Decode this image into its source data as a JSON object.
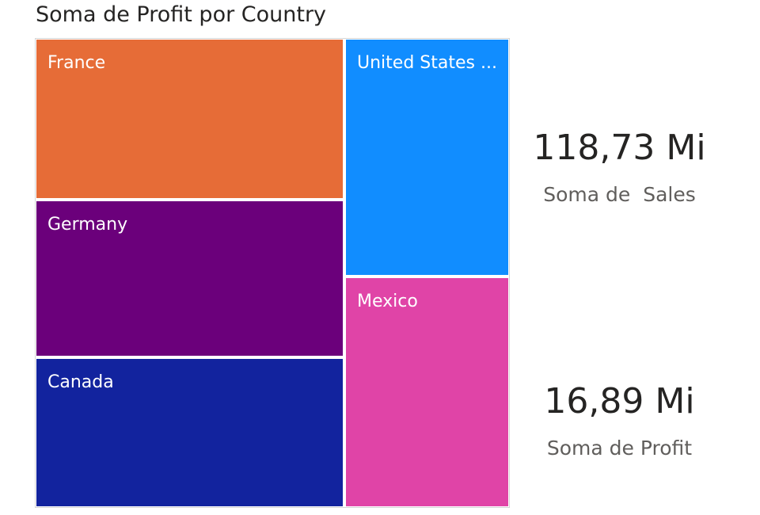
{
  "chart_data": {
    "type": "treemap",
    "title": "Soma de Profit por Country",
    "tiles": [
      {
        "label": "France",
        "color": "#E66C37"
      },
      {
        "label": "Germany",
        "color": "#6B007B"
      },
      {
        "label": "Canada",
        "color": "#12239E"
      },
      {
        "label": "United States ...",
        "color": "#118DFF"
      },
      {
        "label": "Mexico",
        "color": "#E044A7"
      }
    ]
  },
  "cards": [
    {
      "value": "118,73 Mi",
      "label": "Soma de  Sales"
    },
    {
      "value": "16,89 Mi",
      "label": "Soma de Profit"
    }
  ]
}
